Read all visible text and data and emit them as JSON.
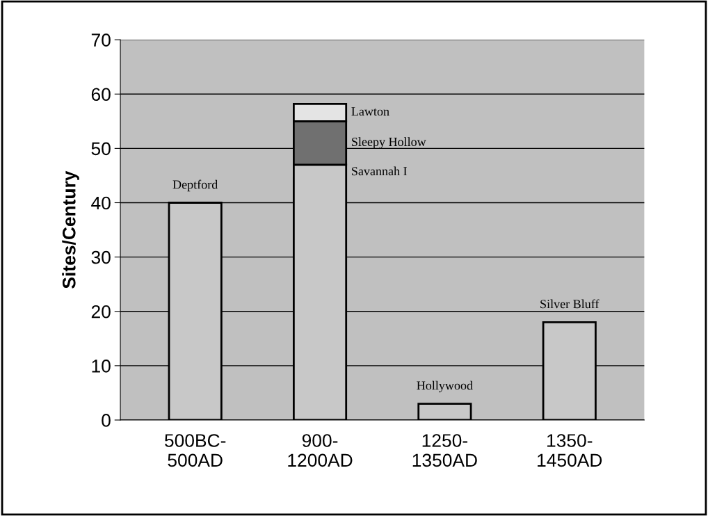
{
  "chart_data": {
    "type": "bar",
    "ylabel": "Sites/Century",
    "categories": [
      "500BC-\n500AD",
      "900-\n1200AD",
      "1250-\n1350AD",
      "1350-\n1450AD"
    ],
    "stacked": true,
    "series": [
      {
        "name": "Deptford",
        "color": "#c8c8c8",
        "values": [
          40,
          null,
          null,
          null
        ]
      },
      {
        "name": "Savannah I",
        "color": "#c8c8c8",
        "values": [
          null,
          47,
          null,
          null
        ]
      },
      {
        "name": "Sleepy Hollow",
        "color": "#707070",
        "values": [
          null,
          8,
          null,
          null
        ]
      },
      {
        "name": "Lawton",
        "color": "#e4e4e4",
        "values": [
          null,
          3.2,
          null,
          null
        ]
      },
      {
        "name": "Hollywood",
        "color": "#c8c8c8",
        "values": [
          null,
          null,
          3,
          null
        ]
      },
      {
        "name": "Silver Bluff",
        "color": "#c8c8c8",
        "values": [
          null,
          null,
          null,
          18
        ]
      }
    ],
    "ylim": [
      0,
      70
    ],
    "yticks": [
      0,
      10,
      20,
      30,
      40,
      50,
      60,
      70
    ],
    "grid": "y"
  }
}
